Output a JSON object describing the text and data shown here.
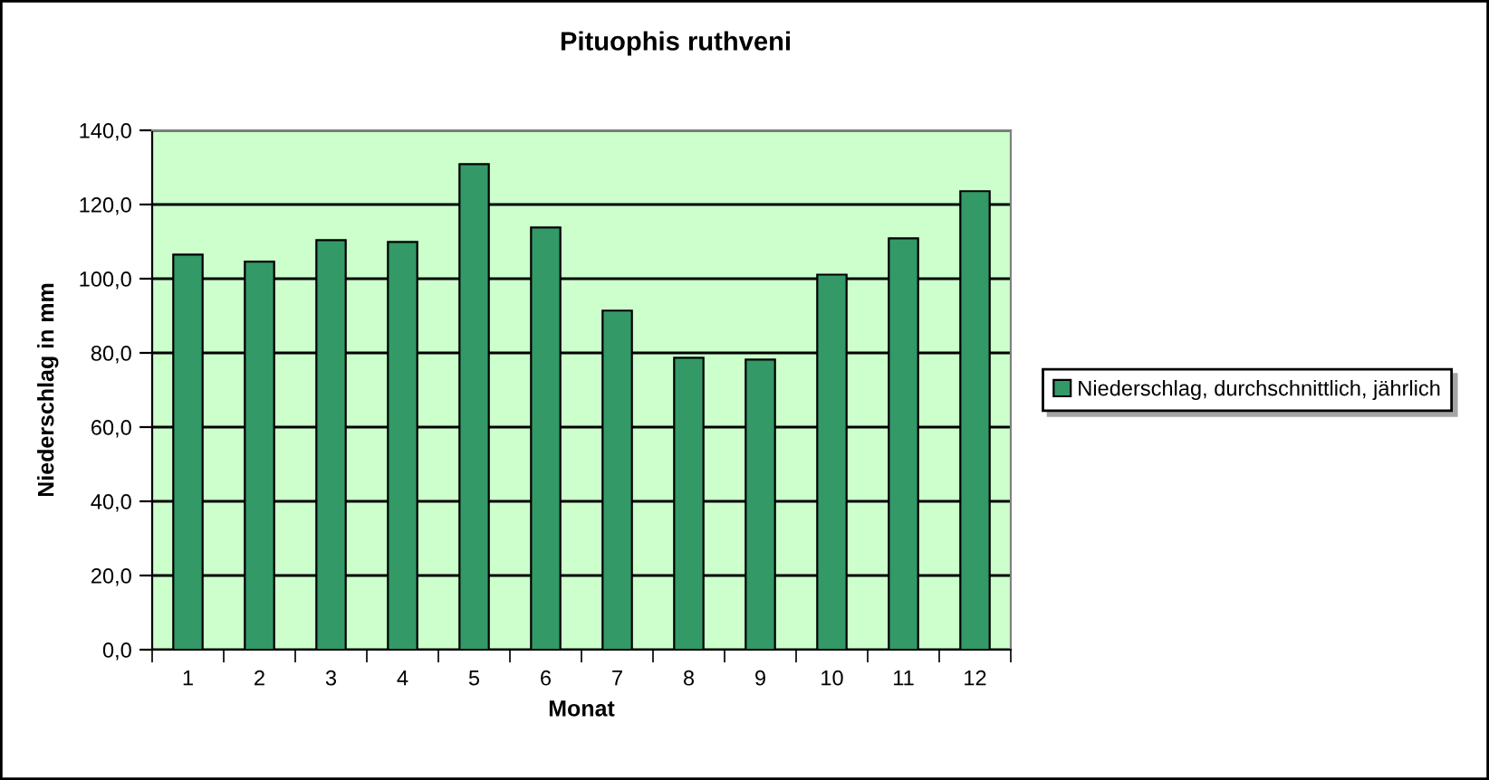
{
  "chart_data": {
    "type": "bar",
    "title": "Pituophis ruthveni",
    "xlabel": "Monat",
    "ylabel": "Niederschlag in mm",
    "categories": [
      "1",
      "2",
      "3",
      "4",
      "5",
      "6",
      "7",
      "8",
      "9",
      "10",
      "11",
      "12"
    ],
    "series": [
      {
        "name": "Niederschlag, durchschnittlich, jährlich",
        "color": "#339966",
        "values": [
          106.5,
          104.6,
          110.4,
          109.9,
          130.9,
          113.8,
          91.4,
          78.7,
          78.2,
          101.1,
          110.9,
          123.6
        ]
      }
    ],
    "ylim": [
      0,
      140
    ],
    "yticks": [
      {
        "value": 0,
        "label": "0,0"
      },
      {
        "value": 20,
        "label": "20,0"
      },
      {
        "value": 40,
        "label": "40,0"
      },
      {
        "value": 60,
        "label": "60,0"
      },
      {
        "value": 80,
        "label": "80,0"
      },
      {
        "value": 100,
        "label": "100,0"
      },
      {
        "value": 120,
        "label": "120,0"
      },
      {
        "value": 140,
        "label": "140,0"
      }
    ],
    "grid": "y",
    "legend": "right"
  }
}
